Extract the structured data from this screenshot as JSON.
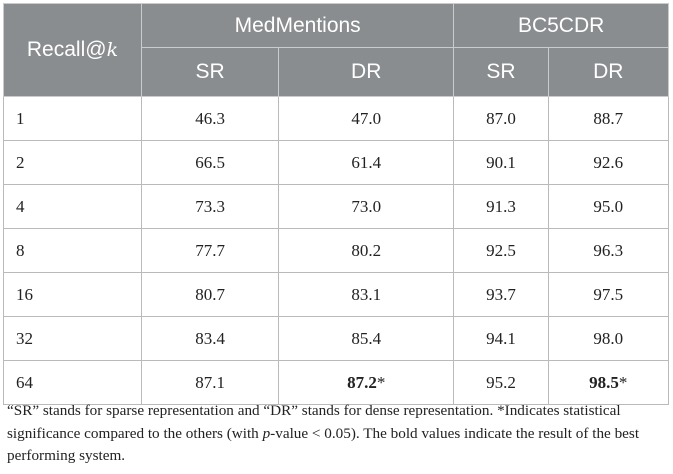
{
  "table": {
    "header": {
      "recall_label": "Recall@",
      "recall_var": "k",
      "datasets": [
        "MedMentions",
        "BC5CDR"
      ],
      "subcolumns": [
        "SR",
        "DR",
        "SR",
        "DR"
      ]
    },
    "rows": [
      {
        "k": "1",
        "mm_sr": "46.3",
        "mm_dr": "47.0",
        "bc_sr": "87.0",
        "bc_dr": "88.7"
      },
      {
        "k": "2",
        "mm_sr": "66.5",
        "mm_dr": "61.4",
        "bc_sr": "90.1",
        "bc_dr": "92.6"
      },
      {
        "k": "4",
        "mm_sr": "73.3",
        "mm_dr": "73.0",
        "bc_sr": "91.3",
        "bc_dr": "95.0"
      },
      {
        "k": "8",
        "mm_sr": "77.7",
        "mm_dr": "80.2",
        "bc_sr": "92.5",
        "bc_dr": "96.3"
      },
      {
        "k": "16",
        "mm_sr": "80.7",
        "mm_dr": "83.1",
        "bc_sr": "93.7",
        "bc_dr": "97.5"
      },
      {
        "k": "32",
        "mm_sr": "83.4",
        "mm_dr": "85.4",
        "bc_sr": "94.1",
        "bc_dr": "98.0"
      },
      {
        "k": "64",
        "mm_sr": "87.1",
        "mm_dr": "87.2",
        "bc_sr": "95.2",
        "bc_dr": "98.5"
      }
    ],
    "significance_mark": "*"
  },
  "footnote": {
    "part1": "“SR” stands for sparse representation and “DR” stands for dense representation. *Indicates statistical significance compared to the others (with ",
    "p_italic": "p",
    "part2": "-value < 0.05). The bold values indicate the result of the best performing system."
  }
}
